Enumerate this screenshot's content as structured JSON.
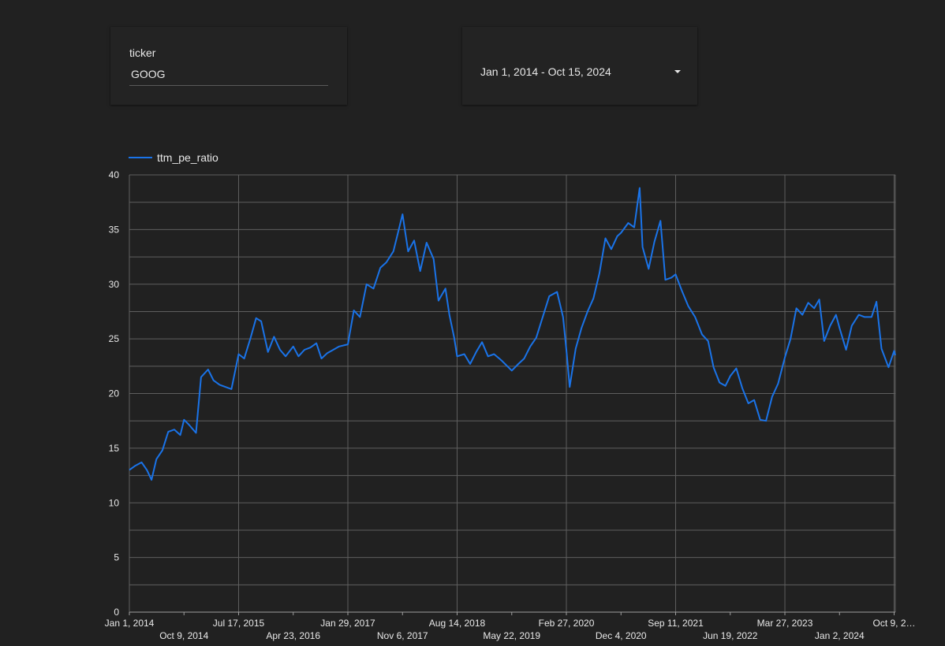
{
  "filters": {
    "ticker": {
      "label": "ticker",
      "value": "GOOG"
    },
    "date_range": {
      "value": "Jan 1, 2014 - Oct 15, 2024"
    }
  },
  "colors": {
    "background": "#212121",
    "series": "#1a73e8",
    "grid": "#5f5f5f",
    "text": "#e8e8e8"
  },
  "chart_data": {
    "type": "line",
    "legend": "top-left",
    "grid": true,
    "title": "",
    "xlabel": "",
    "ylabel": "",
    "ylim": [
      0,
      40
    ],
    "yticks": [
      0,
      5,
      10,
      15,
      20,
      25,
      30,
      35,
      40
    ],
    "xlim": [
      "2014-01-01",
      "2024-10-15"
    ],
    "xticks": [
      {
        "date": "2014-01-01",
        "label": "Jan 1, 2014"
      },
      {
        "date": "2014-10-09",
        "label": "Oct 9, 2014"
      },
      {
        "date": "2015-07-17",
        "label": "Jul 17, 2015"
      },
      {
        "date": "2016-04-23",
        "label": "Apr 23, 2016"
      },
      {
        "date": "2017-01-29",
        "label": "Jan 29, 2017"
      },
      {
        "date": "2017-11-06",
        "label": "Nov 6, 2017"
      },
      {
        "date": "2018-08-14",
        "label": "Aug 14, 2018"
      },
      {
        "date": "2019-05-22",
        "label": "May 22, 2019"
      },
      {
        "date": "2020-02-27",
        "label": "Feb 27, 2020"
      },
      {
        "date": "2020-12-04",
        "label": "Dec 4, 2020"
      },
      {
        "date": "2021-09-11",
        "label": "Sep 11, 2021"
      },
      {
        "date": "2022-06-19",
        "label": "Jun 19, 2022"
      },
      {
        "date": "2023-03-27",
        "label": "Mar 27, 2023"
      },
      {
        "date": "2024-01-02",
        "label": "Jan 2, 2024"
      },
      {
        "date": "2024-10-09",
        "label": "Oct 9, 2…"
      }
    ],
    "series": [
      {
        "name": "ttm_pe_ratio",
        "points": [
          [
            "2014-01-01",
            13.0
          ],
          [
            "2014-02-01",
            13.4
          ],
          [
            "2014-03-05",
            13.7
          ],
          [
            "2014-04-01",
            13.0
          ],
          [
            "2014-04-25",
            12.1
          ],
          [
            "2014-05-20",
            14.0
          ],
          [
            "2014-06-20",
            14.8
          ],
          [
            "2014-07-20",
            16.5
          ],
          [
            "2014-08-20",
            16.7
          ],
          [
            "2014-09-20",
            16.2
          ],
          [
            "2014-10-09",
            17.6
          ],
          [
            "2014-11-01",
            17.2
          ],
          [
            "2014-12-10",
            16.4
          ],
          [
            "2015-01-05",
            21.5
          ],
          [
            "2015-02-10",
            22.2
          ],
          [
            "2015-03-10",
            21.2
          ],
          [
            "2015-04-10",
            20.8
          ],
          [
            "2015-06-10",
            20.4
          ],
          [
            "2015-07-17",
            23.6
          ],
          [
            "2015-08-15",
            23.2
          ],
          [
            "2015-09-15",
            25.0
          ],
          [
            "2015-10-15",
            26.9
          ],
          [
            "2015-11-10",
            26.6
          ],
          [
            "2015-12-15",
            23.8
          ],
          [
            "2016-01-15",
            25.2
          ],
          [
            "2016-02-15",
            24.0
          ],
          [
            "2016-03-15",
            23.4
          ],
          [
            "2016-04-23",
            24.3
          ],
          [
            "2016-05-20",
            23.4
          ],
          [
            "2016-06-20",
            24.0
          ],
          [
            "2016-07-20",
            24.2
          ],
          [
            "2016-08-20",
            24.6
          ],
          [
            "2016-09-15",
            23.2
          ],
          [
            "2016-10-15",
            23.7
          ],
          [
            "2016-11-15",
            24.0
          ],
          [
            "2016-12-15",
            24.3
          ],
          [
            "2017-01-29",
            24.5
          ],
          [
            "2017-03-01",
            27.6
          ],
          [
            "2017-04-01",
            27.0
          ],
          [
            "2017-05-05",
            30.0
          ],
          [
            "2017-06-10",
            29.6
          ],
          [
            "2017-07-15",
            31.5
          ],
          [
            "2017-08-15",
            32.0
          ],
          [
            "2017-09-20",
            33.0
          ],
          [
            "2017-11-06",
            36.4
          ],
          [
            "2017-12-05",
            33.0
          ],
          [
            "2018-01-05",
            34.0
          ],
          [
            "2018-02-05",
            31.2
          ],
          [
            "2018-03-10",
            33.8
          ],
          [
            "2018-04-15",
            32.3
          ],
          [
            "2018-05-10",
            28.5
          ],
          [
            "2018-06-15",
            29.6
          ],
          [
            "2018-07-05",
            27.2
          ],
          [
            "2018-07-30",
            25.1
          ],
          [
            "2018-08-14",
            23.4
          ],
          [
            "2018-09-20",
            23.6
          ],
          [
            "2018-10-20",
            22.7
          ],
          [
            "2018-11-20",
            23.8
          ],
          [
            "2018-12-20",
            24.7
          ],
          [
            "2019-01-20",
            23.4
          ],
          [
            "2019-02-20",
            23.6
          ],
          [
            "2019-04-01",
            23.0
          ],
          [
            "2019-05-22",
            22.1
          ],
          [
            "2019-06-25",
            22.7
          ],
          [
            "2019-07-25",
            23.2
          ],
          [
            "2019-08-25",
            24.3
          ],
          [
            "2019-09-25",
            25.1
          ],
          [
            "2019-11-01",
            27.2
          ],
          [
            "2019-12-01",
            28.9
          ],
          [
            "2020-01-10",
            29.3
          ],
          [
            "2020-02-10",
            27.0
          ],
          [
            "2020-02-27",
            24.0
          ],
          [
            "2020-03-15",
            20.6
          ],
          [
            "2020-04-15",
            24.1
          ],
          [
            "2020-05-15",
            26.0
          ],
          [
            "2020-06-15",
            27.5
          ],
          [
            "2020-07-15",
            28.7
          ],
          [
            "2020-08-15",
            31.0
          ],
          [
            "2020-09-15",
            34.2
          ],
          [
            "2020-10-15",
            33.2
          ],
          [
            "2020-11-15",
            34.4
          ],
          [
            "2020-12-04",
            34.7
          ],
          [
            "2021-01-10",
            35.6
          ],
          [
            "2021-02-10",
            35.2
          ],
          [
            "2021-03-10",
            38.8
          ],
          [
            "2021-03-25",
            33.4
          ],
          [
            "2021-04-25",
            31.4
          ],
          [
            "2021-05-25",
            33.9
          ],
          [
            "2021-06-25",
            35.8
          ],
          [
            "2021-07-20",
            30.4
          ],
          [
            "2021-08-20",
            30.6
          ],
          [
            "2021-09-11",
            30.9
          ],
          [
            "2021-10-11",
            29.5
          ],
          [
            "2021-11-15",
            28.0
          ],
          [
            "2021-12-20",
            27.0
          ],
          [
            "2022-01-25",
            25.4
          ],
          [
            "2022-02-25",
            24.8
          ],
          [
            "2022-03-25",
            22.4
          ],
          [
            "2022-04-25",
            21.0
          ],
          [
            "2022-05-25",
            20.7
          ],
          [
            "2022-06-19",
            21.6
          ],
          [
            "2022-07-20",
            22.3
          ],
          [
            "2022-08-20",
            20.5
          ],
          [
            "2022-09-20",
            19.1
          ],
          [
            "2022-10-20",
            19.4
          ],
          [
            "2022-11-20",
            17.6
          ],
          [
            "2022-12-20",
            17.5
          ],
          [
            "2023-01-20",
            19.7
          ],
          [
            "2023-02-20",
            20.9
          ],
          [
            "2023-03-27",
            23.3
          ],
          [
            "2023-04-25",
            25.0
          ],
          [
            "2023-05-25",
            27.8
          ],
          [
            "2023-06-25",
            27.2
          ],
          [
            "2023-07-25",
            28.3
          ],
          [
            "2023-08-25",
            27.8
          ],
          [
            "2023-09-20",
            28.6
          ],
          [
            "2023-10-15",
            24.8
          ],
          [
            "2023-11-15",
            26.2
          ],
          [
            "2023-12-15",
            27.2
          ],
          [
            "2024-01-02",
            26.0
          ],
          [
            "2024-02-05",
            24.0
          ],
          [
            "2024-03-05",
            26.2
          ],
          [
            "2024-04-10",
            27.2
          ],
          [
            "2024-05-10",
            27.0
          ],
          [
            "2024-06-15",
            27.0
          ],
          [
            "2024-07-10",
            28.4
          ],
          [
            "2024-08-05",
            24.1
          ],
          [
            "2024-09-10",
            22.4
          ],
          [
            "2024-10-09",
            23.9
          ],
          [
            "2024-10-15",
            23.5
          ]
        ]
      }
    ]
  }
}
